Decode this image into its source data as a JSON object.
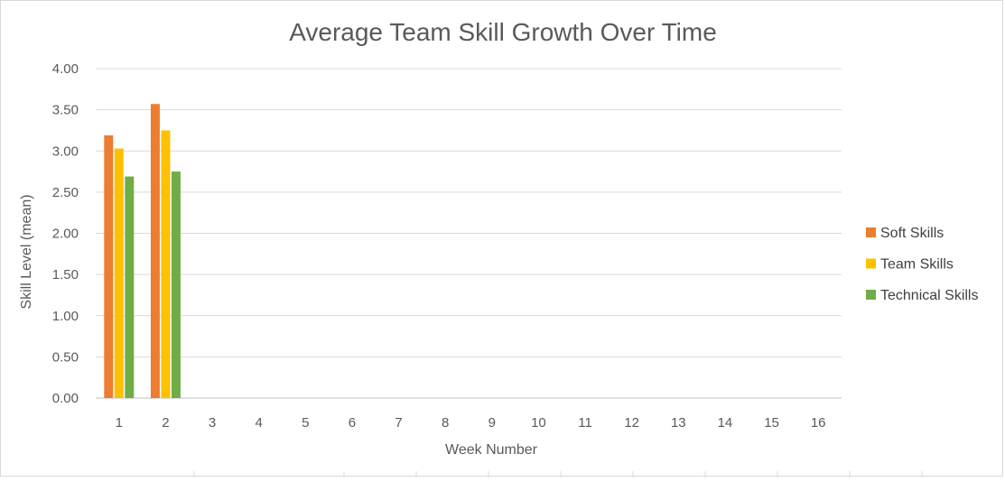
{
  "chart_data": {
    "type": "bar",
    "title": "Average Team Skill Growth Over Time",
    "xlabel": "Week Number",
    "ylabel": "Skill Level (mean)",
    "categories": [
      "1",
      "2",
      "3",
      "4",
      "5",
      "6",
      "7",
      "8",
      "9",
      "10",
      "11",
      "12",
      "13",
      "14",
      "15",
      "16"
    ],
    "ylim": [
      0,
      4
    ],
    "y_ticks": [
      "0.00",
      "0.50",
      "1.00",
      "1.50",
      "2.00",
      "2.50",
      "3.00",
      "3.50",
      "4.00"
    ],
    "grid": true,
    "legend_position": "right",
    "series": [
      {
        "name": "Soft Skills",
        "color": "#ED7D31",
        "values": [
          3.19,
          3.57,
          null,
          null,
          null,
          null,
          null,
          null,
          null,
          null,
          null,
          null,
          null,
          null,
          null,
          null
        ]
      },
      {
        "name": "Team Skills",
        "color": "#FFC000",
        "values": [
          3.03,
          3.25,
          null,
          null,
          null,
          null,
          null,
          null,
          null,
          null,
          null,
          null,
          null,
          null,
          null,
          null
        ]
      },
      {
        "name": "Technical Skills",
        "color": "#70AD47",
        "values": [
          2.69,
          2.75,
          null,
          null,
          null,
          null,
          null,
          null,
          null,
          null,
          null,
          null,
          null,
          null,
          null,
          null
        ]
      }
    ]
  }
}
